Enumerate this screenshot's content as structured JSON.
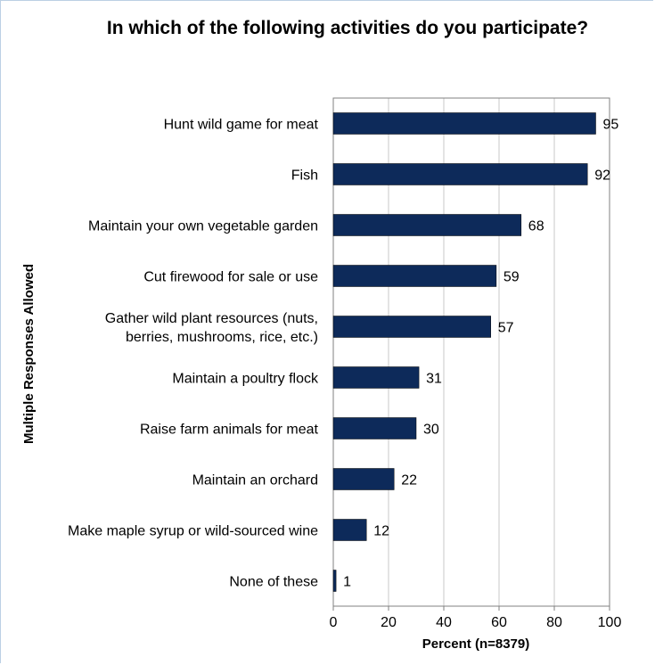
{
  "chart_data": {
    "type": "bar",
    "orientation": "horizontal",
    "title": "In which of the following activities do you participate?",
    "xlabel": "Percent (n=8379)",
    "ylabel": "Multiple Responses Allowed",
    "xlim": [
      0,
      100
    ],
    "xticks": [
      0,
      20,
      40,
      60,
      80,
      100
    ],
    "grid": true,
    "bar_color": "#0d2a5a",
    "categories": [
      [
        "Hunt wild game for meat"
      ],
      [
        "Fish"
      ],
      [
        "Maintain your own vegetable garden"
      ],
      [
        "Cut firewood for sale or use"
      ],
      [
        "Gather wild plant resources (nuts,",
        "berries, mushrooms, rice, etc.)"
      ],
      [
        "Maintain a poultry flock"
      ],
      [
        "Raise farm animals for meat"
      ],
      [
        "Maintain an orchard"
      ],
      [
        "Make maple syrup or wild-sourced wine"
      ],
      [
        "None of these"
      ]
    ],
    "values": [
      95,
      92,
      68,
      59,
      57,
      31,
      30,
      22,
      12,
      1
    ]
  }
}
